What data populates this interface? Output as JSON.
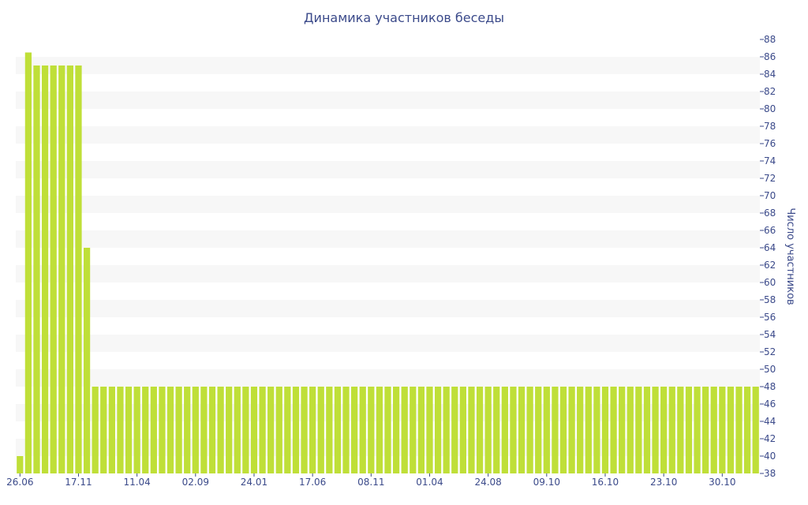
{
  "chart_data": {
    "type": "bar",
    "title": "Динамика участников беседы",
    "xlabel": "",
    "ylabel": "Число участников",
    "ylim": [
      38,
      88
    ],
    "ytick_step": 2,
    "y_axis_position": "right",
    "grid": "alternating horizontal bands",
    "bar_color": "#bfdf38",
    "band_color": "#f7f7f7",
    "text_color": "#3b4a8a",
    "xtick_labels": [
      "26.06",
      "17.11",
      "11.04",
      "02.09",
      "24.01",
      "17.06",
      "08.11",
      "01.04",
      "24.08",
      "09.10",
      "16.10",
      "23.10",
      "30.10"
    ],
    "xtick_bar_index": [
      0,
      7,
      14,
      21,
      28,
      35,
      42,
      49,
      56,
      63,
      70,
      77,
      84
    ],
    "values": [
      40,
      86.5,
      85,
      85,
      85,
      85,
      85,
      85,
      64,
      48,
      48,
      48,
      48,
      48,
      48,
      48,
      48,
      48,
      48,
      48,
      48,
      48,
      48,
      48,
      48,
      48,
      48,
      48,
      48,
      48,
      48,
      48,
      48,
      48,
      48,
      48,
      48,
      48,
      48,
      48,
      48,
      48,
      48,
      48,
      48,
      48,
      48,
      48,
      48,
      48,
      48,
      48,
      48,
      48,
      48,
      48,
      48,
      48,
      48,
      48,
      48,
      48,
      48,
      48,
      48,
      48,
      48,
      48,
      48,
      48,
      48,
      48,
      48,
      48,
      48,
      48,
      48,
      48,
      48,
      48,
      48,
      48,
      48,
      48,
      48,
      48,
      48,
      48,
      48
    ]
  }
}
